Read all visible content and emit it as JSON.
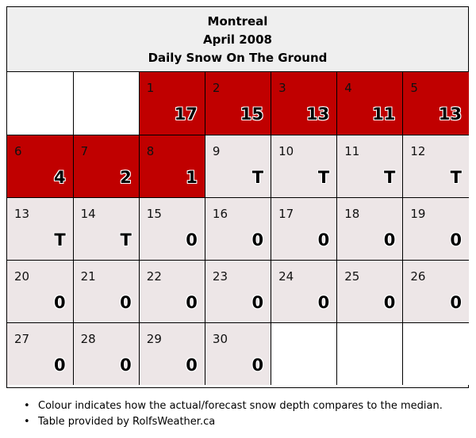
{
  "header": {
    "city": "Montreal",
    "period": "April 2008",
    "title": "Daily Snow On The Ground"
  },
  "legend_colors": {
    "above_median": "#c00000",
    "normal": "#ede6e7",
    "empty": "#ffffff"
  },
  "weeks": [
    [
      {
        "day": "",
        "value": "",
        "status": "empty"
      },
      {
        "day": "",
        "value": "",
        "status": "empty"
      },
      {
        "day": "1",
        "value": "17",
        "status": "above"
      },
      {
        "day": "2",
        "value": "15",
        "status": "above"
      },
      {
        "day": "3",
        "value": "13",
        "status": "above"
      },
      {
        "day": "4",
        "value": "11",
        "status": "above"
      },
      {
        "day": "5",
        "value": "13",
        "status": "above"
      }
    ],
    [
      {
        "day": "6",
        "value": "4",
        "status": "above"
      },
      {
        "day": "7",
        "value": "2",
        "status": "above"
      },
      {
        "day": "8",
        "value": "1",
        "status": "above"
      },
      {
        "day": "9",
        "value": "T",
        "status": "normal"
      },
      {
        "day": "10",
        "value": "T",
        "status": "normal"
      },
      {
        "day": "11",
        "value": "T",
        "status": "normal"
      },
      {
        "day": "12",
        "value": "T",
        "status": "normal"
      }
    ],
    [
      {
        "day": "13",
        "value": "T",
        "status": "normal"
      },
      {
        "day": "14",
        "value": "T",
        "status": "normal"
      },
      {
        "day": "15",
        "value": "0",
        "status": "normal"
      },
      {
        "day": "16",
        "value": "0",
        "status": "normal"
      },
      {
        "day": "17",
        "value": "0",
        "status": "normal"
      },
      {
        "day": "18",
        "value": "0",
        "status": "normal"
      },
      {
        "day": "19",
        "value": "0",
        "status": "normal"
      }
    ],
    [
      {
        "day": "20",
        "value": "0",
        "status": "normal"
      },
      {
        "day": "21",
        "value": "0",
        "status": "normal"
      },
      {
        "day": "22",
        "value": "0",
        "status": "normal"
      },
      {
        "day": "23",
        "value": "0",
        "status": "normal"
      },
      {
        "day": "24",
        "value": "0",
        "status": "normal"
      },
      {
        "day": "25",
        "value": "0",
        "status": "normal"
      },
      {
        "day": "26",
        "value": "0",
        "status": "normal"
      }
    ],
    [
      {
        "day": "27",
        "value": "0",
        "status": "normal"
      },
      {
        "day": "28",
        "value": "0",
        "status": "normal"
      },
      {
        "day": "29",
        "value": "0",
        "status": "normal"
      },
      {
        "day": "30",
        "value": "0",
        "status": "normal"
      },
      {
        "day": "",
        "value": "",
        "status": "empty"
      },
      {
        "day": "",
        "value": "",
        "status": "empty"
      },
      {
        "day": "",
        "value": "",
        "status": "empty"
      }
    ]
  ],
  "notes": [
    "Colour indicates how the actual/forecast snow depth compares to the median.",
    "Table provided by RolfsWeather.ca"
  ]
}
